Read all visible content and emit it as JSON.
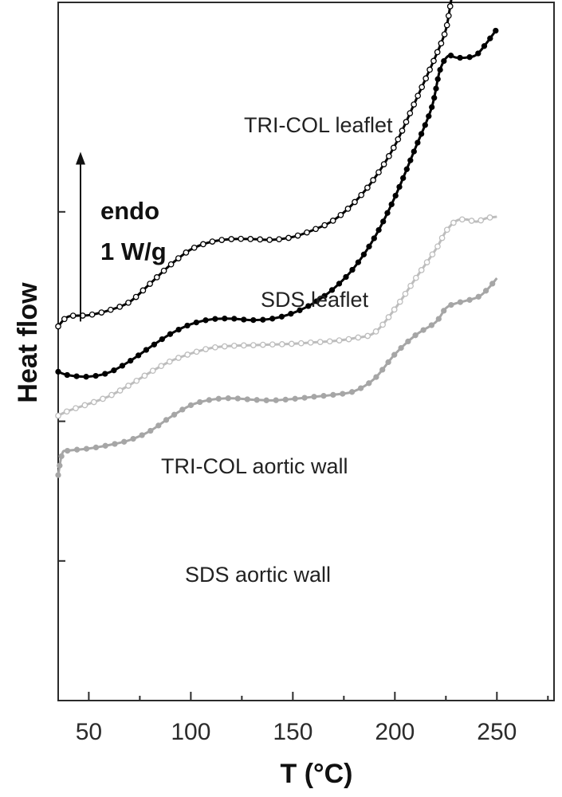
{
  "chart_data": {
    "type": "line",
    "title": "",
    "xlabel": "T (°C)",
    "ylabel": "Heat flow",
    "xlim": [
      35,
      278
    ],
    "ylim": [
      0,
      100
    ],
    "x_ticks": [
      50,
      100,
      150,
      200,
      250
    ],
    "grid": false,
    "annotations": [
      "endo",
      "1 W/g"
    ],
    "scale_arrow": {
      "from": 54.3,
      "to": 78.6,
      "label": "1 W/g"
    },
    "y_axis_numbers_shown": false,
    "series": [
      {
        "name": "TRI-COL leaflet",
        "color": "#000000",
        "marker": "open-circle",
        "points": [
          [
            35,
            53.6
          ],
          [
            40,
            55
          ],
          [
            50,
            55.2
          ],
          [
            60,
            55.9
          ],
          [
            70,
            57.1
          ],
          [
            80,
            59.7
          ],
          [
            90,
            62.4
          ],
          [
            100,
            64.6
          ],
          [
            110,
            65.7
          ],
          [
            120,
            66.1
          ],
          [
            130,
            66.1
          ],
          [
            140,
            66
          ],
          [
            150,
            66.4
          ],
          [
            160,
            67.4
          ],
          [
            170,
            68.8
          ],
          [
            180,
            71.3
          ],
          [
            190,
            74.8
          ],
          [
            200,
            79.5
          ],
          [
            210,
            85.8
          ],
          [
            220,
            92.3
          ],
          [
            225,
            96.1
          ],
          [
            228,
            100.9
          ],
          [
            231,
            103.8
          ],
          [
            235,
            103.3
          ],
          [
            240,
            102.6
          ],
          [
            245,
            103.3
          ],
          [
            250,
            104.5
          ]
        ]
      },
      {
        "name": "SDS leaflet",
        "color": "#000000",
        "marker": "filled-circle",
        "points": [
          [
            35,
            47.1
          ],
          [
            40,
            46.6
          ],
          [
            50,
            46.4
          ],
          [
            60,
            47
          ],
          [
            70,
            48.6
          ],
          [
            80,
            50.6
          ],
          [
            90,
            52.5
          ],
          [
            100,
            53.9
          ],
          [
            110,
            54.6
          ],
          [
            120,
            54.7
          ],
          [
            130,
            54.5
          ],
          [
            140,
            54.7
          ],
          [
            150,
            55.5
          ],
          [
            160,
            56.9
          ],
          [
            170,
            59
          ],
          [
            180,
            62
          ],
          [
            190,
            66.3
          ],
          [
            200,
            72.1
          ],
          [
            210,
            79.1
          ],
          [
            218,
            84.9
          ],
          [
            222,
            90.2
          ],
          [
            226,
            92.3
          ],
          [
            230,
            92.1
          ],
          [
            235,
            92.1
          ],
          [
            240,
            92.5
          ],
          [
            245,
            94.2
          ],
          [
            250,
            96.2
          ]
        ]
      },
      {
        "name": "TRI-COL aortic wall",
        "color": "#bdbdbd",
        "marker": "open-circle",
        "points": [
          [
            35,
            40.8
          ],
          [
            40,
            41.5
          ],
          [
            50,
            42.5
          ],
          [
            60,
            43.6
          ],
          [
            70,
            45.2
          ],
          [
            80,
            47
          ],
          [
            90,
            48.6
          ],
          [
            100,
            49.7
          ],
          [
            110,
            50.5
          ],
          [
            120,
            50.8
          ],
          [
            130,
            50.9
          ],
          [
            140,
            51
          ],
          [
            150,
            51.1
          ],
          [
            160,
            51.3
          ],
          [
            170,
            51.5
          ],
          [
            180,
            51.9
          ],
          [
            190,
            52.7
          ],
          [
            200,
            56.1
          ],
          [
            210,
            60.4
          ],
          [
            220,
            64.6
          ],
          [
            225,
            67.2
          ],
          [
            230,
            68.7
          ],
          [
            235,
            68.9
          ],
          [
            240,
            68.6
          ],
          [
            245,
            69.1
          ],
          [
            250,
            69.3
          ]
        ]
      },
      {
        "name": "SDS aortic wall",
        "color": "#a6a6a6",
        "marker": "filled-circle",
        "points": [
          [
            35,
            32.3
          ],
          [
            37,
            35.4
          ],
          [
            40,
            35.8
          ],
          [
            50,
            36.1
          ],
          [
            60,
            36.6
          ],
          [
            70,
            37.3
          ],
          [
            80,
            38.6
          ],
          [
            90,
            40.6
          ],
          [
            100,
            42.3
          ],
          [
            110,
            43.1
          ],
          [
            120,
            43.3
          ],
          [
            130,
            43.1
          ],
          [
            140,
            43
          ],
          [
            150,
            43.2
          ],
          [
            160,
            43.5
          ],
          [
            170,
            43.8
          ],
          [
            180,
            44.3
          ],
          [
            190,
            46.1
          ],
          [
            200,
            49.6
          ],
          [
            210,
            52.3
          ],
          [
            220,
            54.2
          ],
          [
            225,
            56.2
          ],
          [
            230,
            56.9
          ],
          [
            240,
            57.7
          ],
          [
            245,
            58.8
          ],
          [
            250,
            60.5
          ]
        ]
      }
    ]
  }
}
